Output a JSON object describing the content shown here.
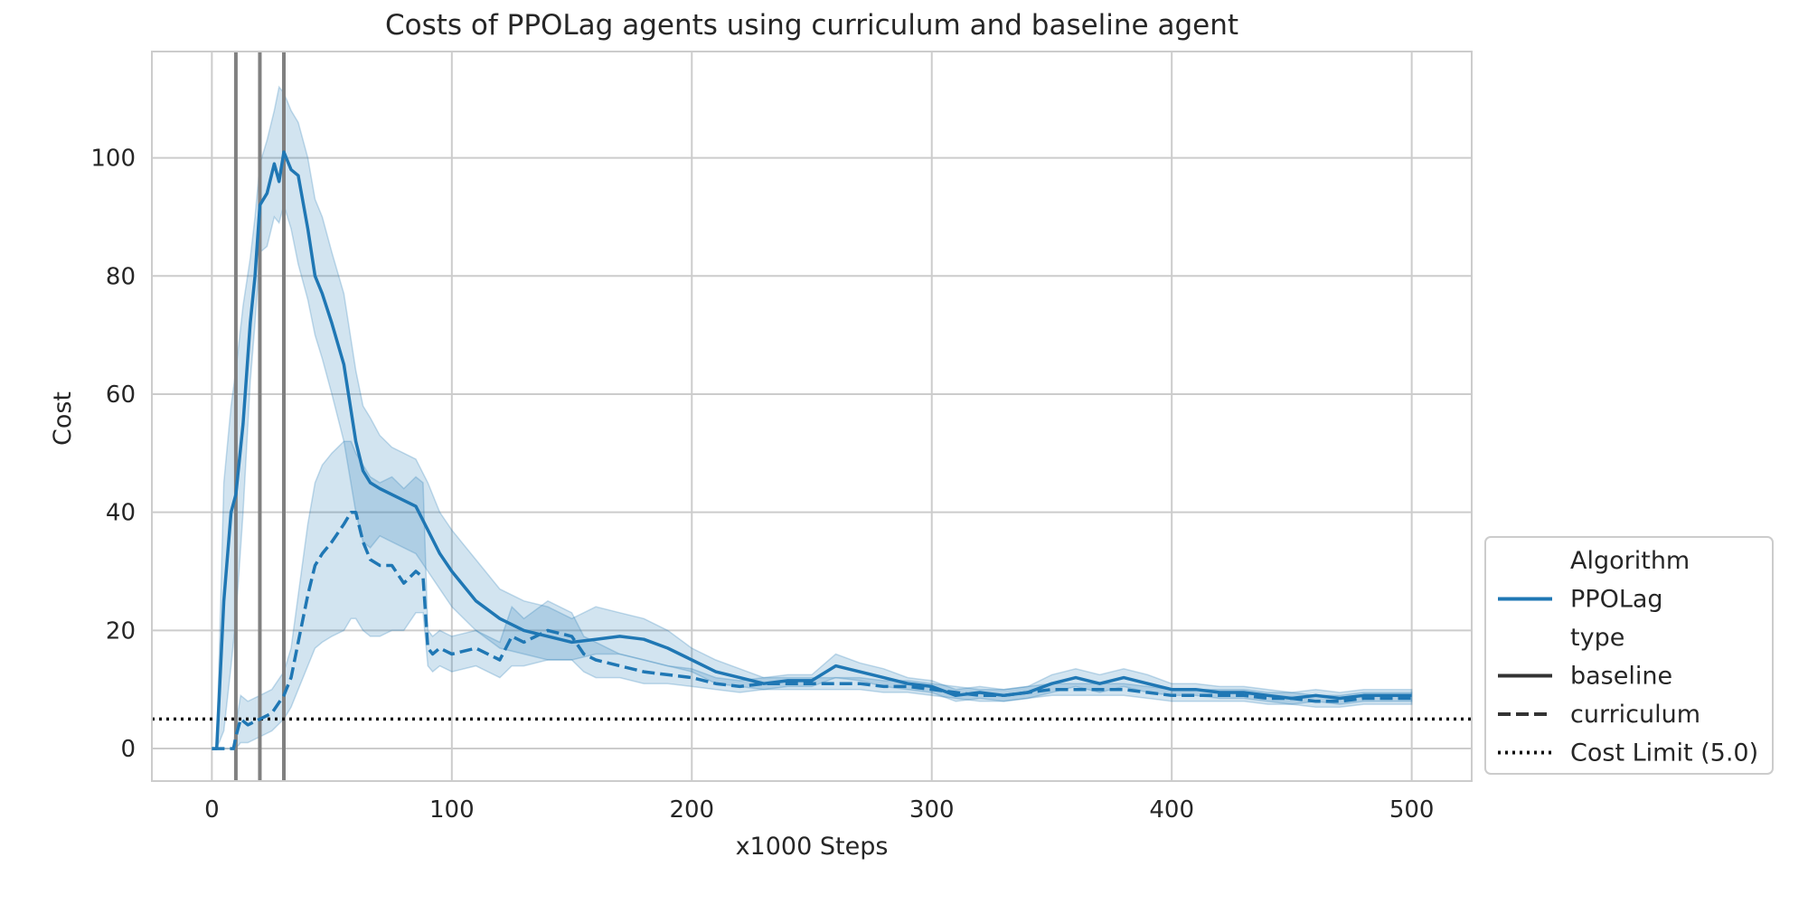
{
  "chart_data": {
    "type": "line",
    "title": "Costs of PPOLag agents using curriculum and baseline agent",
    "xlabel": "x1000 Steps",
    "ylabel": "Cost",
    "xlim": [
      -25,
      525
    ],
    "ylim": [
      -5.5,
      118
    ],
    "xticks": [
      0,
      100,
      200,
      300,
      400,
      500
    ],
    "yticks": [
      0,
      20,
      40,
      60,
      80,
      100
    ],
    "grid": true,
    "colors": {
      "series": "#1f77b4",
      "band": "#1f77b4",
      "vlines": "#808080",
      "cost_limit": "#111111",
      "grid": "#cccccc",
      "text": "#262626"
    },
    "vertical_lines_x": [
      10,
      20,
      30
    ],
    "cost_limit": {
      "label": "Cost Limit (5.0)",
      "value": 5.0
    },
    "legend": {
      "position": "lower-right outside",
      "entries": [
        {
          "label": "Algorithm",
          "style": "header"
        },
        {
          "label": "PPOLag",
          "style": "color"
        },
        {
          "label": "type",
          "style": "header"
        },
        {
          "label": "baseline",
          "style": "solid"
        },
        {
          "label": "curriculum",
          "style": "dashed"
        },
        {
          "label": "Cost Limit (5.0)",
          "style": "dotted"
        }
      ]
    },
    "series": [
      {
        "name": "baseline",
        "linestyle": "solid",
        "x": [
          0,
          2,
          5,
          8,
          10,
          13,
          16,
          18,
          20,
          23,
          26,
          28,
          30,
          33,
          36,
          40,
          43,
          46,
          50,
          55,
          60,
          63,
          66,
          70,
          75,
          80,
          85,
          90,
          95,
          100,
          110,
          120,
          130,
          140,
          150,
          160,
          170,
          180,
          190,
          200,
          210,
          220,
          230,
          240,
          250,
          260,
          270,
          280,
          290,
          300,
          310,
          320,
          330,
          340,
          350,
          360,
          370,
          380,
          390,
          400,
          410,
          420,
          430,
          440,
          450,
          460,
          470,
          480,
          490,
          500
        ],
        "y": [
          0,
          0,
          25,
          40,
          43,
          55,
          72,
          80,
          92,
          94,
          99,
          96,
          101,
          98,
          97,
          88,
          80,
          77,
          72,
          65,
          52,
          47,
          45,
          44,
          43,
          42,
          41,
          37,
          33,
          30,
          25,
          22,
          20,
          19,
          18,
          18.5,
          19,
          18.5,
          17,
          15,
          13,
          12,
          11,
          11.5,
          11.5,
          14,
          13,
          12,
          11,
          10.5,
          9,
          9.5,
          9,
          9.5,
          11,
          12,
          11,
          12,
          11,
          10,
          10,
          9.5,
          9.5,
          9,
          8.5,
          9,
          8.5,
          9,
          9,
          9
        ],
        "lower": [
          0,
          0,
          3,
          14,
          22,
          40,
          62,
          72,
          84,
          85,
          90,
          89,
          92,
          88,
          82,
          76,
          70,
          66,
          60,
          52,
          40,
          35,
          34,
          36,
          35,
          34,
          33,
          30,
          27,
          24,
          20,
          17,
          16,
          15,
          15,
          16,
          16,
          15,
          14,
          13,
          11,
          10.5,
          10,
          10.5,
          10.5,
          12,
          11.5,
          10.5,
          10,
          9.5,
          8,
          8.5,
          8,
          8.5,
          9.5,
          10.5,
          9.5,
          10.5,
          9.5,
          9,
          9,
          8.5,
          8.5,
          8,
          7.5,
          8,
          7.5,
          8,
          8,
          8
        ],
        "upper": [
          0,
          0,
          45,
          58,
          64,
          75,
          83,
          90,
          99,
          103,
          108,
          112,
          111,
          108,
          106,
          100,
          93,
          90,
          84,
          77,
          64,
          58,
          56,
          53,
          51,
          50,
          49,
          45,
          40,
          37,
          32,
          27,
          25,
          24,
          22,
          24,
          23,
          22,
          20,
          17,
          15,
          13.5,
          12,
          12.5,
          12.5,
          16,
          14.5,
          13.5,
          12,
          11.5,
          10,
          10.5,
          10,
          10.5,
          12.5,
          13.5,
          12.5,
          13.5,
          12.5,
          11,
          11,
          10.5,
          10.5,
          10,
          9.5,
          10,
          9.5,
          10,
          10,
          10
        ]
      },
      {
        "name": "curriculum",
        "linestyle": "dashed",
        "x": [
          0,
          5,
          9,
          10,
          12,
          15,
          20,
          25,
          30,
          33,
          36,
          40,
          43,
          46,
          50,
          55,
          58,
          60,
          63,
          66,
          70,
          75,
          80,
          85,
          88,
          90,
          92,
          95,
          100,
          110,
          120,
          125,
          130,
          140,
          150,
          155,
          160,
          170,
          180,
          190,
          200,
          210,
          220,
          230,
          240,
          250,
          260,
          270,
          280,
          290,
          300,
          310,
          320,
          330,
          340,
          350,
          360,
          370,
          380,
          390,
          400,
          410,
          420,
          430,
          440,
          450,
          460,
          470,
          480,
          490,
          500
        ],
        "y": [
          0,
          0,
          0,
          2,
          5,
          4,
          5,
          6,
          9,
          12,
          18,
          26,
          31,
          33,
          35,
          38,
          40,
          40,
          35,
          32,
          31,
          31,
          28,
          30,
          29,
          17,
          16,
          17,
          16,
          17,
          15,
          19,
          18,
          20,
          19,
          16,
          15,
          14,
          13,
          12.5,
          12,
          11,
          10.5,
          11,
          11,
          11,
          11,
          11,
          10.5,
          10.5,
          10,
          9.5,
          9,
          9,
          9.5,
          10,
          10,
          10,
          10,
          9.5,
          9,
          9,
          9,
          9,
          8.5,
          8.5,
          8,
          8,
          8.5,
          8.5,
          8.5
        ],
        "lower": [
          0,
          0,
          0,
          0,
          1,
          1,
          2,
          3,
          5,
          7,
          10,
          14,
          17,
          18,
          19,
          20,
          22,
          22,
          20,
          19,
          19,
          20,
          20,
          23,
          23,
          14,
          13,
          14,
          13,
          14,
          12,
          14,
          14,
          15,
          15,
          13,
          12,
          12,
          11,
          11,
          10.5,
          10,
          9.5,
          10,
          10,
          10,
          10,
          10,
          9.5,
          9.5,
          9,
          8.5,
          8,
          8,
          8.5,
          9,
          9,
          9,
          9,
          8.5,
          8,
          8,
          8,
          8,
          7.5,
          7.5,
          7,
          7,
          7.5,
          7.5,
          7.5
        ],
        "upper": [
          0,
          0,
          0,
          4,
          9,
          8,
          9,
          10,
          13,
          17,
          26,
          38,
          45,
          48,
          50,
          52,
          52,
          50,
          48,
          46,
          45,
          46,
          44,
          46,
          45,
          20,
          19,
          20,
          19,
          20,
          18,
          24,
          22,
          25,
          23,
          19,
          18,
          16,
          15,
          14,
          13.5,
          12,
          11.5,
          12,
          12,
          12,
          12,
          12,
          11.5,
          11.5,
          11,
          10.5,
          10,
          10,
          10.5,
          11,
          11,
          11,
          11,
          10.5,
          10,
          10,
          10,
          10,
          9.5,
          9.5,
          9,
          9,
          9.5,
          9.5,
          9.5
        ]
      }
    ]
  }
}
